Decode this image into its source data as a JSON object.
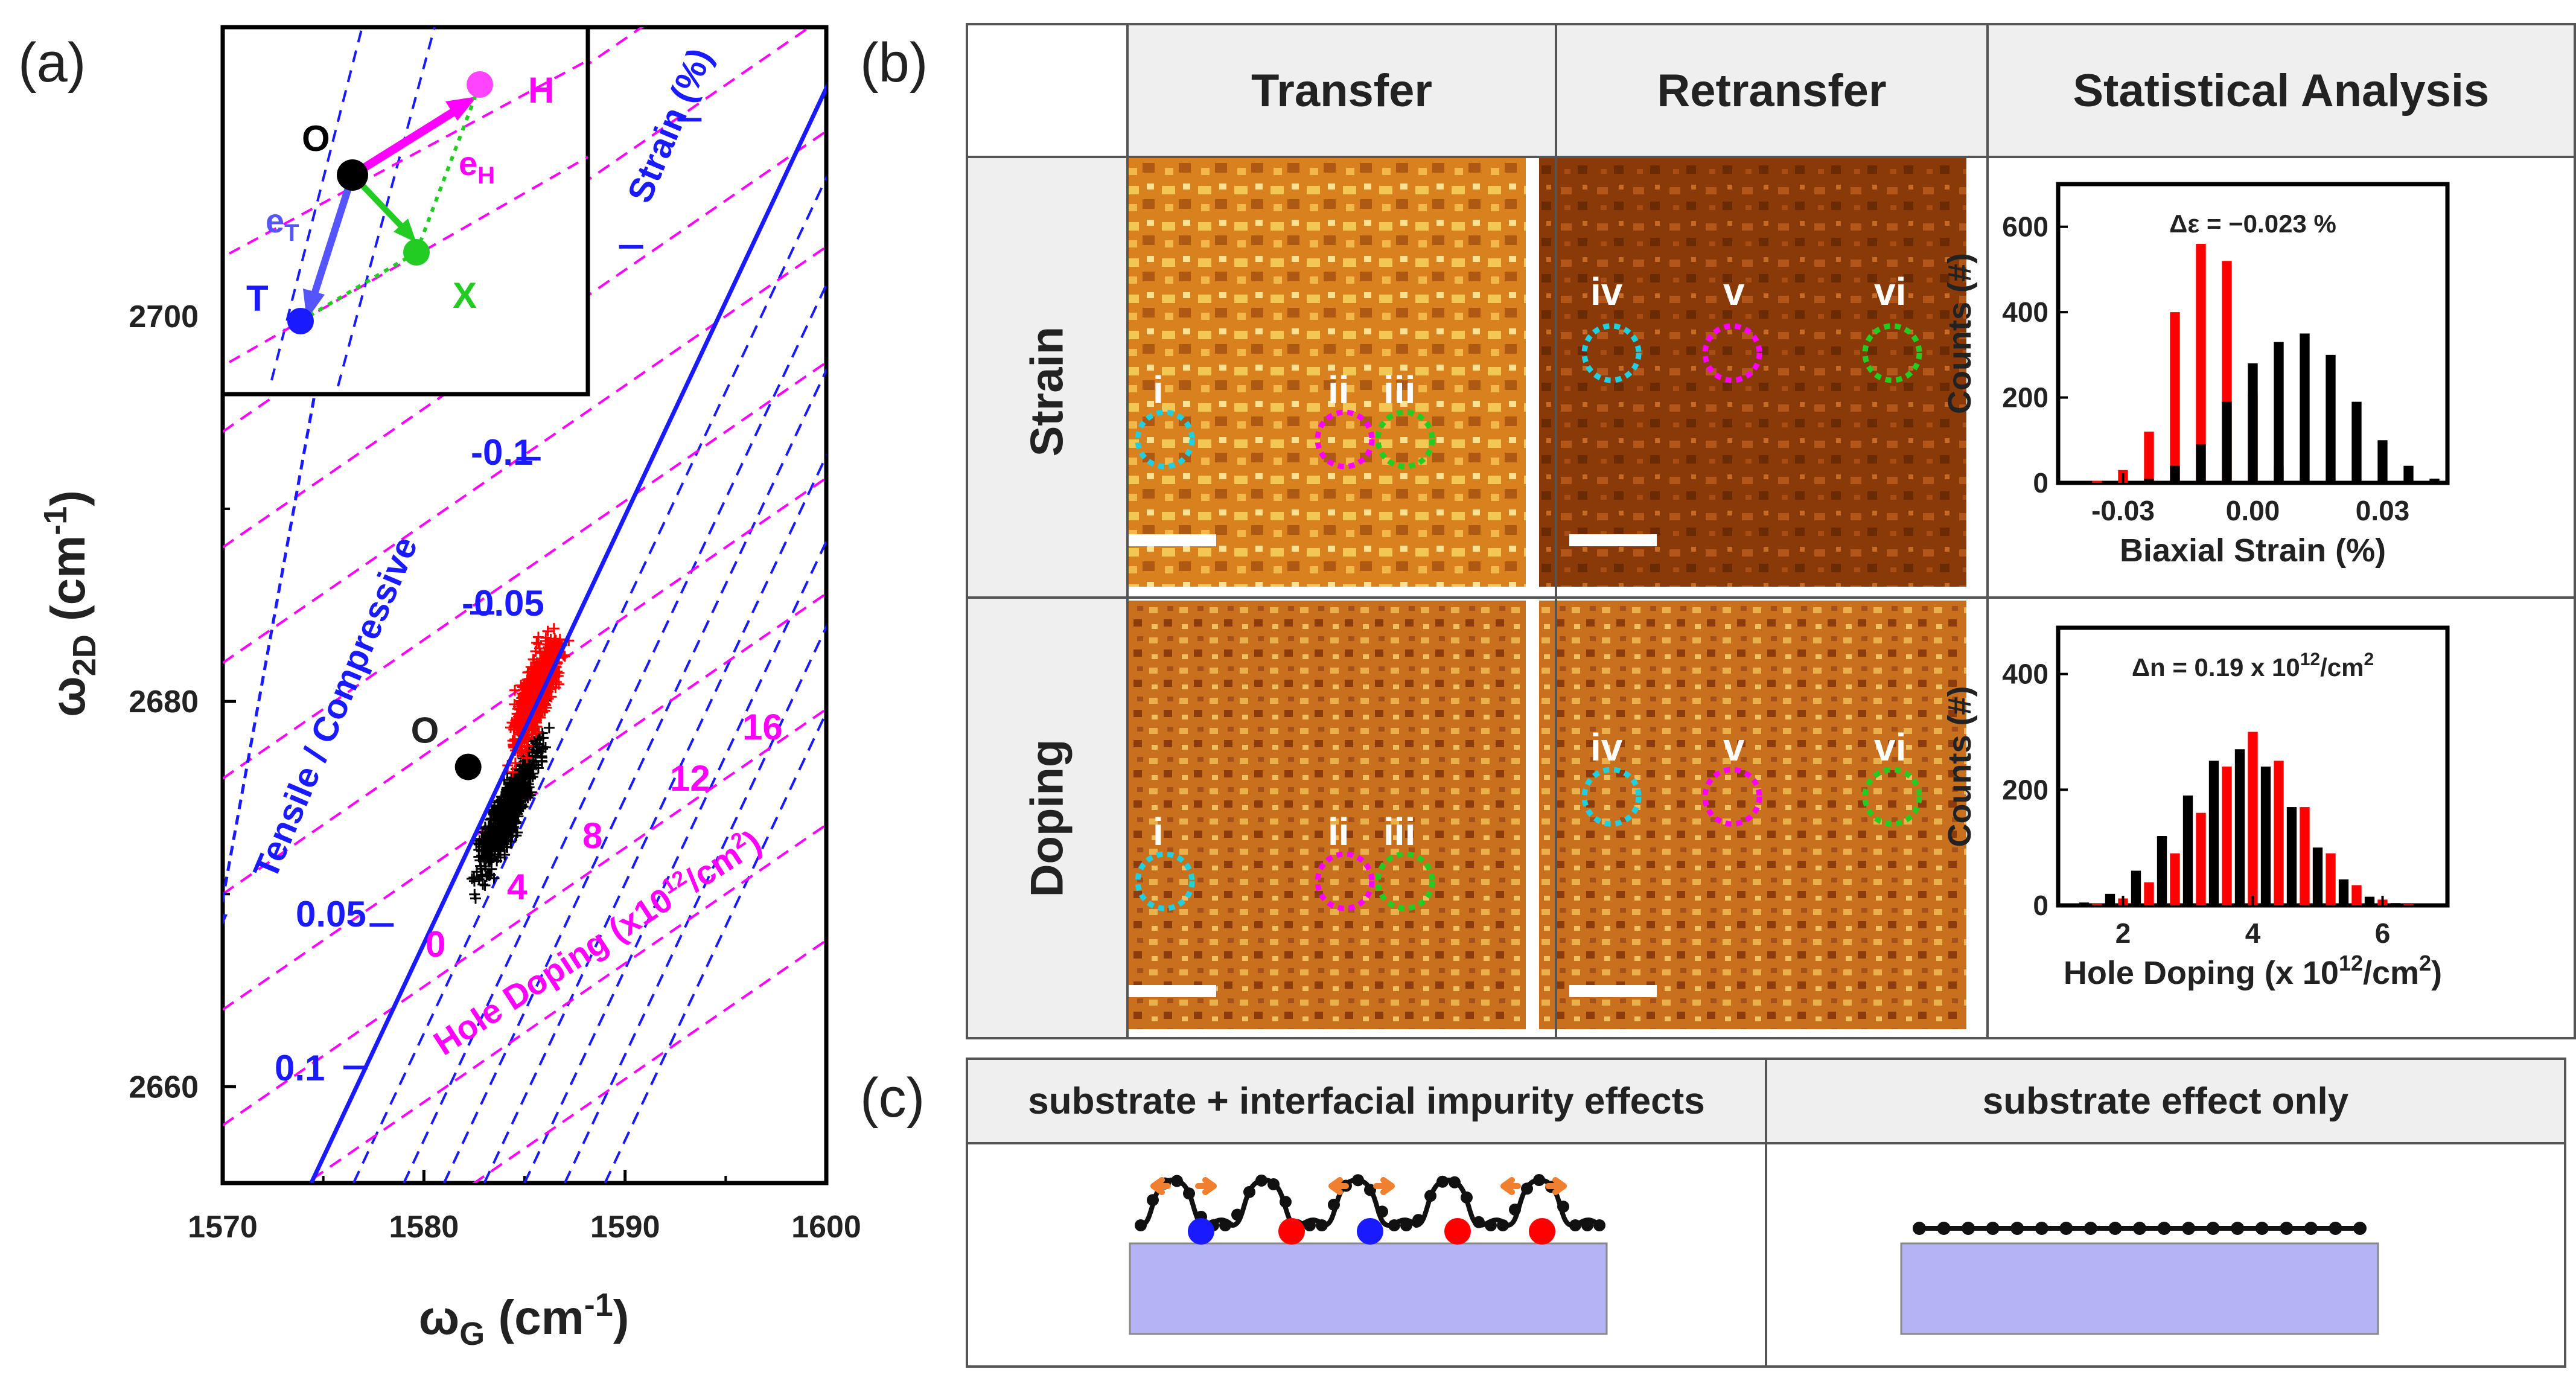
{
  "panel_labels": {
    "a": "(a)",
    "b": "(b)",
    "c": "(c)"
  },
  "colors": {
    "blue": "#1a1aff",
    "magenta": "#ff00ff",
    "green": "#22cc22",
    "red": "#ff0000",
    "black": "#000000",
    "orange": "#f08030",
    "substrate": "#b3b3f5",
    "cyan": "#20d0e0"
  },
  "panel_a": {
    "chart_data": {
      "type": "scatter",
      "xlabel": "ω",
      "xlabel_sub": "G",
      "xlabel_unit": " (cm",
      "xlabel_sup": "-1",
      "xlabel_close": ")",
      "ylabel": "ω",
      "ylabel_sub": "2D",
      "ylabel_unit": " (cm",
      "ylabel_sup": "-1",
      "ylabel_close": ")",
      "xlim": [
        1570,
        1600
      ],
      "ylim": [
        2655,
        2715
      ],
      "xticks": [
        "1570",
        "1580",
        "1590",
        "1600"
      ],
      "yticks": [
        "2660",
        "2680",
        "2700"
      ],
      "origin_point": {
        "x": 1582.2,
        "y": 2676.6,
        "label": "O"
      },
      "strain_axis_label": "Strain (%)",
      "strain_ticks": [
        "0.1",
        "0.05",
        "-0.05",
        "-0.1"
      ],
      "doping_axis_label": "Hole Doping (x10",
      "doping_axis_sup": "12",
      "doping_axis_unit": "/cm",
      "doping_axis_sup2": "2",
      "doping_axis_close": ")",
      "doping_ticks": [
        "0",
        "4",
        "8",
        "12",
        "16"
      ],
      "tensile_compressive_label": "Tensile / Compressive",
      "series": [
        {
          "name": "Transfer",
          "color": "#000000",
          "center": [
            1584.2,
            2674.4
          ],
          "n": 600
        },
        {
          "name": "Retransfer",
          "color": "#ff0000",
          "center": [
            1585.6,
            2680.5
          ],
          "n": 650
        }
      ]
    },
    "inset": {
      "O": "O",
      "H": "H",
      "T": "T",
      "X": "X",
      "eT": "e",
      "eT_sub": "T",
      "eH": "e",
      "eH_sub": "H"
    }
  },
  "panel_b": {
    "columns": [
      "Transfer",
      "Retransfer",
      "Statistical Analysis"
    ],
    "rows": [
      "Strain",
      "Doping"
    ],
    "transfer_circles": [
      "i",
      "ii",
      "iii"
    ],
    "retransfer_circles": [
      "iv",
      "v",
      "vi"
    ],
    "hist_strain": {
      "chart_data": {
        "type": "bar",
        "annotation": "Δε = −0.023 %",
        "xlabel": "Biaxial Strain (%)",
        "ylabel": "Counts (#)",
        "xticks": [
          "-0.03",
          "0.00",
          "0.03"
        ],
        "yticks": [
          "0",
          "200",
          "400",
          "600"
        ],
        "xlim": [
          -0.045,
          0.045
        ],
        "ylim": [
          0,
          700
        ],
        "series": [
          {
            "name": "Retransfer",
            "color": "#ff0000",
            "x": [
              -0.036,
              -0.03,
              -0.024,
              -0.018,
              -0.012,
              -0.006,
              0.0,
              0.006
            ],
            "values": [
              5,
              30,
              120,
              400,
              560,
              520,
              210,
              40
            ]
          },
          {
            "name": "Transfer",
            "color": "#000000",
            "x": [
              -0.024,
              -0.018,
              -0.012,
              -0.006,
              0.0,
              0.006,
              0.012,
              0.018,
              0.024,
              0.03,
              0.036,
              0.042
            ],
            "values": [
              10,
              40,
              90,
              190,
              280,
              330,
              350,
              300,
              190,
              100,
              40,
              10
            ]
          }
        ]
      }
    },
    "hist_doping": {
      "chart_data": {
        "type": "bar",
        "annotation": "Δn = 0.19 x 10",
        "annotation_sup": "12",
        "annotation_unit": "/cm",
        "annotation_sup2": "2",
        "xlabel": "Hole Doping (x 10",
        "xlabel_sup": "12",
        "xlabel_unit": "/cm",
        "xlabel_sup2": "2",
        "xlabel_close": ")",
        "ylabel": "Counts (#)",
        "xticks": [
          "2",
          "4",
          "6"
        ],
        "yticks": [
          "0",
          "200",
          "400"
        ],
        "xlim": [
          1.0,
          7.0
        ],
        "ylim": [
          0,
          480
        ],
        "series": [
          {
            "name": "Transfer",
            "color": "#000000",
            "x": [
              1.4,
              1.8,
              2.2,
              2.6,
              3.0,
              3.4,
              3.8,
              4.2,
              4.6,
              5.0,
              5.4,
              5.8,
              6.2
            ],
            "values": [
              5,
              20,
              60,
              120,
              190,
              250,
              270,
              240,
              170,
              100,
              45,
              15,
              4
            ]
          },
          {
            "name": "Retransfer",
            "color": "#ff0000",
            "x": [
              1.6,
              2.0,
              2.4,
              2.8,
              3.2,
              3.6,
              4.0,
              4.4,
              4.8,
              5.2,
              5.6,
              6.0,
              6.4
            ],
            "values": [
              3,
              12,
              40,
              90,
              160,
              240,
              300,
              250,
              170,
              90,
              35,
              10,
              2
            ]
          }
        ]
      }
    }
  },
  "panel_c": {
    "left_title": "substrate + interfacial impurity effects",
    "right_title": "substrate effect only"
  }
}
